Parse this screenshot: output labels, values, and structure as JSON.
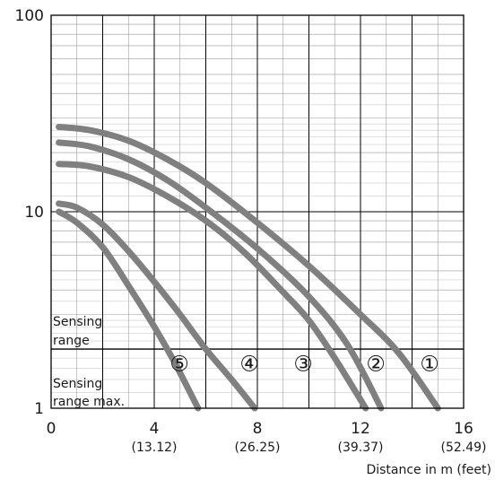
{
  "chart_data": {
    "type": "line",
    "xlabel": "Distance in m (feet)",
    "ylabel": "",
    "xlim": [
      0,
      16
    ],
    "ylim": [
      1,
      100
    ],
    "y_scale": "log",
    "grid": true,
    "x_ticks": [
      {
        "value": 0,
        "label": "0",
        "sublabel": ""
      },
      {
        "value": 4,
        "label": "4",
        "sublabel": "(13.12)"
      },
      {
        "value": 8,
        "label": "8",
        "sublabel": "(26.25)"
      },
      {
        "value": 12,
        "label": "12",
        "sublabel": "(39.37)"
      },
      {
        "value": 16,
        "label": "16",
        "sublabel": "(52.49)"
      }
    ],
    "y_ticks": [
      {
        "value": 1,
        "label": "1"
      },
      {
        "value": 10,
        "label": "10"
      },
      {
        "value": 100,
        "label": "100"
      }
    ],
    "threshold": 2,
    "region_labels": {
      "above": [
        "Sensing",
        "range"
      ],
      "below": [
        "Sensing",
        "range max."
      ]
    },
    "series_color": "#808080",
    "series": [
      {
        "name": "①",
        "x": [
          0.3,
          1.5,
          3.0,
          4.5,
          6.0,
          8.0,
          10.0,
          12.0,
          13.5,
          15.0
        ],
        "y": [
          27,
          26,
          23,
          18.5,
          14,
          8.8,
          5.3,
          3.0,
          1.9,
          1.0
        ]
      },
      {
        "name": "②",
        "x": [
          0.3,
          1.5,
          3.0,
          4.5,
          6.0,
          8.0,
          10.0,
          11.5,
          12.8
        ],
        "y": [
          22.5,
          21.5,
          18.5,
          14.5,
          10.5,
          6.5,
          3.7,
          2.1,
          1.0
        ]
      },
      {
        "name": "③",
        "x": [
          0.3,
          1.5,
          3.0,
          4.5,
          6.0,
          7.5,
          9.0,
          10.0,
          11.0,
          12.2
        ],
        "y": [
          17.5,
          17,
          15,
          12,
          9,
          6.2,
          3.9,
          2.8,
          1.8,
          1.0
        ]
      },
      {
        "name": "④",
        "x": [
          0.3,
          1.0,
          2.0,
          3.0,
          4.0,
          5.0,
          6.0,
          7.0,
          7.9
        ],
        "y": [
          11,
          10.5,
          8.6,
          6.3,
          4.4,
          3.0,
          2.0,
          1.4,
          1.0
        ]
      },
      {
        "name": "⑤",
        "x": [
          0.3,
          1.0,
          2.0,
          3.0,
          4.0,
          4.8,
          5.7
        ],
        "y": [
          10,
          8.8,
          6.6,
          4.2,
          2.6,
          1.7,
          1.0
        ]
      }
    ]
  }
}
